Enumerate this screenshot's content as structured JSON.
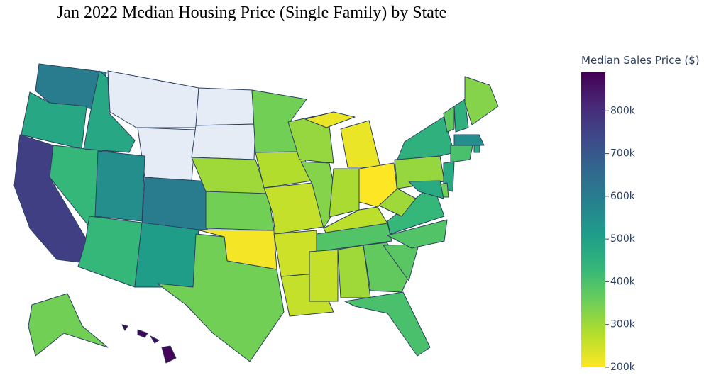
{
  "chart_data": {
    "type": "choropleth",
    "title": "Jan 2022 Median Housing Price (Single Family) by State",
    "colorbar_title": "Median Sales Price ($)",
    "colorscale": "viridis",
    "reversescale": true,
    "missing_color": "#e5ecf6",
    "clim": [
      200000,
      890000
    ],
    "cticks": [
      {
        "value": 200000,
        "label": "200k"
      },
      {
        "value": 300000,
        "label": "300k"
      },
      {
        "value": 400000,
        "label": "400k"
      },
      {
        "value": 500000,
        "label": "500k"
      },
      {
        "value": 600000,
        "label": "600k"
      },
      {
        "value": 700000,
        "label": "700k"
      },
      {
        "value": 800000,
        "label": "800k"
      }
    ],
    "values": [
      600000,
      480000,
      760000,
      430000,
      480000,
      null,
      null,
      null,
      null,
      550000,
      600000,
      430000,
      510000,
      300000,
      350000,
      210000,
      350000,
      350000,
      280000,
      260000,
      250000,
      260000,
      310000,
      330000,
      220000,
      290000,
      200000,
      270000,
      390000,
      260000,
      300000,
      370000,
      400000,
      380000,
      390000,
      430000,
      300000,
      310000,
      450000,
      370000,
      450000,
      330000,
      550000,
      470000,
      400000,
      470000,
      350000,
      470000,
      350000,
      880000
    ]
  }
}
